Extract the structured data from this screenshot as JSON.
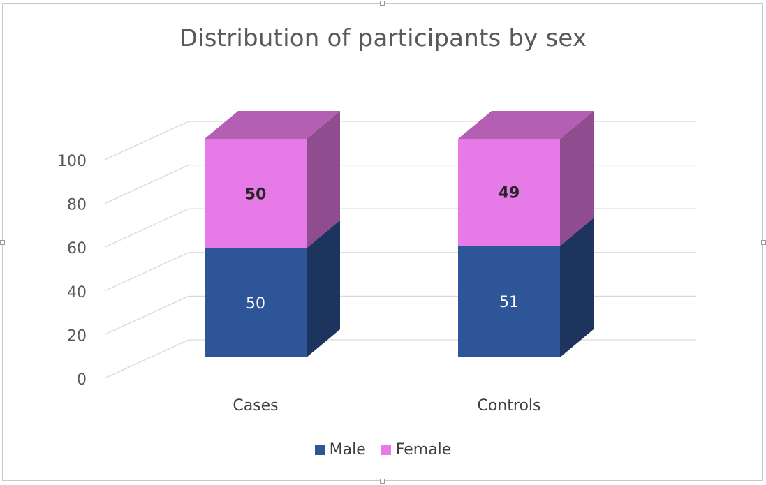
{
  "chart_data": {
    "type": "bar",
    "stacked": true,
    "three_d": true,
    "title": "Distribution of participants by sex",
    "categories": [
      "Cases",
      "Controls"
    ],
    "series": [
      {
        "name": "Male",
        "values": [
          50,
          51
        ],
        "color": "#2e5597",
        "label_color": "#ffffff",
        "label_bold": false
      },
      {
        "name": "Female",
        "values": [
          50,
          49
        ],
        "color": "#e67ae6",
        "label_color": "#262626",
        "label_bold": true
      }
    ],
    "yticks": [
      0,
      20,
      40,
      60,
      80,
      100
    ],
    "ylim": [
      0,
      100
    ],
    "grid": true,
    "legend_position": "bottom"
  }
}
